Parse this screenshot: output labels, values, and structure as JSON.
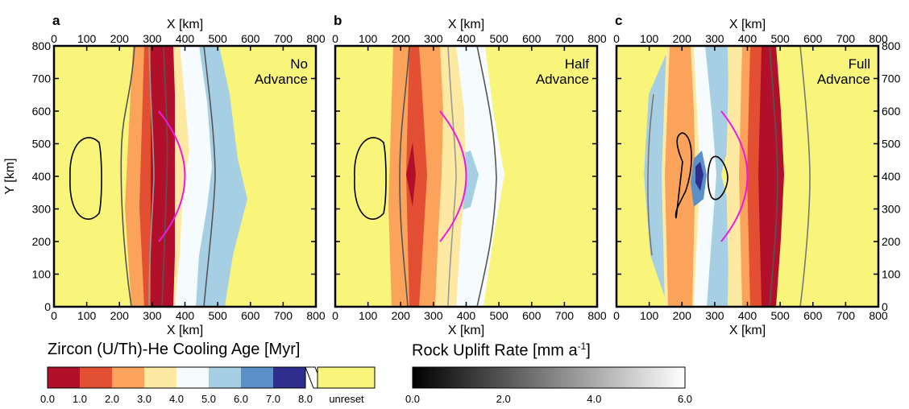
{
  "chart_data": {
    "type": "heatmap",
    "panels": [
      {
        "letter": "a",
        "annotation": [
          "No",
          "Advance"
        ],
        "fault_max_x": 400
      },
      {
        "letter": "b",
        "annotation": [
          "Half",
          "Advance"
        ],
        "fault_max_x": 400
      },
      {
        "letter": "c",
        "annotation": [
          "Full",
          "Advance"
        ],
        "fault_max_x": 400
      }
    ],
    "axes": {
      "xlabel": "X [km]",
      "ylabel": "Y [km]",
      "xlim": [
        0,
        800
      ],
      "ylim": [
        0,
        800
      ],
      "x_ticks": [
        "0",
        "100",
        "200",
        "300",
        "400",
        "500",
        "600",
        "700",
        "800"
      ],
      "y_ticks": [
        "0",
        "100",
        "200",
        "300",
        "400",
        "500",
        "600",
        "700",
        "800"
      ]
    },
    "age_bands": [
      {
        "range": [
          0.0,
          1.0
        ],
        "color": "#b2102a"
      },
      {
        "range": [
          1.0,
          2.0
        ],
        "color": "#e34f33"
      },
      {
        "range": [
          2.0,
          3.0
        ],
        "color": "#fba35a"
      },
      {
        "range": [
          3.0,
          4.0
        ],
        "color": "#fee9a2"
      },
      {
        "range": [
          4.0,
          5.0
        ],
        "color": "#f6fbfd"
      },
      {
        "range": [
          5.0,
          6.0
        ],
        "color": "#a6cfe4"
      },
      {
        "range": [
          6.0,
          7.0
        ],
        "color": "#5b8fc7"
      },
      {
        "range": [
          7.0,
          8.0
        ],
        "color": "#2f2e8f"
      }
    ],
    "unreset_color": "#f8f57a",
    "fault_color": "#e91ce6"
  },
  "legend_age": {
    "title": "Zircon (U/Th)-He Cooling Age [Myr]",
    "ticks": [
      "0.0",
      "1.0",
      "2.0",
      "3.0",
      "4.0",
      "5.0",
      "6.0",
      "7.0",
      "8.0"
    ],
    "unreset_label": "unreset"
  },
  "legend_uplift": {
    "title_main": "Rock Uplift Rate [mm a",
    "title_sup": "-1",
    "title_end": "]",
    "ticks": [
      "0.0",
      "2.0",
      "4.0",
      "6.0"
    ]
  }
}
